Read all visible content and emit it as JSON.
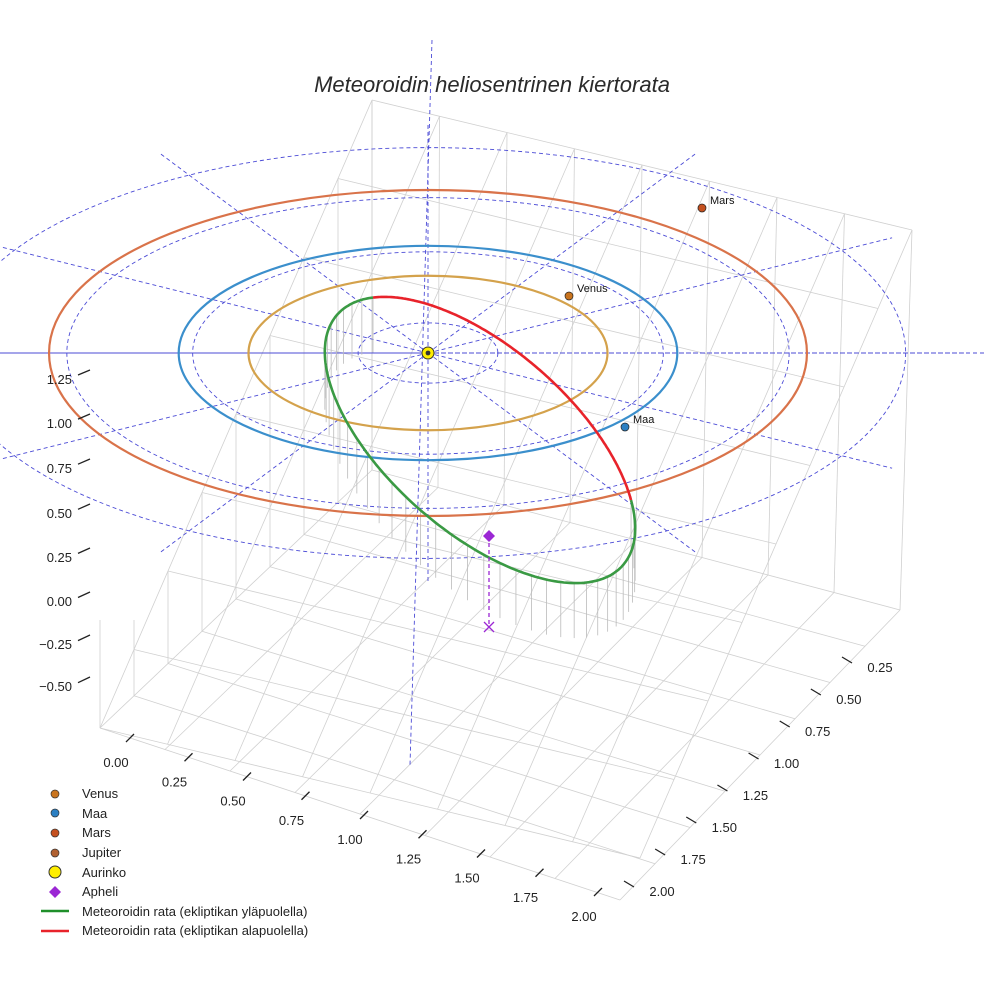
{
  "chart_data": {
    "type": "3d-line",
    "title": "Meteoroidin heliosentrinen kiertorata",
    "x_ticks": [
      "0.00",
      "0.25",
      "0.50",
      "0.75",
      "1.00",
      "1.25",
      "1.50",
      "1.75",
      "2.00"
    ],
    "y_ticks": [
      "0.25",
      "0.50",
      "0.75",
      "1.00",
      "1.25",
      "1.50",
      "1.75",
      "2.00"
    ],
    "z_ticks": [
      "1.25",
      "1.00",
      "0.75",
      "0.50",
      "0.25",
      "0.00",
      "−0.25",
      "−0.50"
    ],
    "planets": [
      {
        "name": "Venus",
        "orbit_radius_au": 0.72,
        "label": "Venus"
      },
      {
        "name": "Maa",
        "orbit_radius_au": 1.0,
        "label": "Maa"
      },
      {
        "name": "Mars",
        "orbit_radius_au": 1.52,
        "label": "Mars"
      }
    ],
    "sun": {
      "name": "Aurinko",
      "position": [
        0,
        0,
        0
      ]
    },
    "meteoroid_orbit": {
      "perihelion_au": 0.0,
      "aphelion_au": 1.3,
      "above_ecliptic_label": "Meteoroidin rata (ekliptikan yläpuolella)",
      "below_ecliptic_label": "Meteoroidin rata (ekliptikan alapuolella)"
    },
    "aphelion_point": {
      "name": "Apheli",
      "projection_z": -0.35
    },
    "legend": [
      {
        "label": "Venus",
        "symbol": "dot",
        "color": "#c9741e"
      },
      {
        "label": "Maa",
        "symbol": "dot",
        "color": "#2b7fc2"
      },
      {
        "label": "Mars",
        "symbol": "dot",
        "color": "#c4501f"
      },
      {
        "label": "Jupiter",
        "symbol": "dot",
        "color": "#b06030"
      },
      {
        "label": "Aurinko",
        "symbol": "sun",
        "color": "#ffee00"
      },
      {
        "label": "Apheli",
        "symbol": "diamond",
        "color": "#9b27d4"
      },
      {
        "label": "Meteoroidin rata (ekliptikan yläpuolella)",
        "symbol": "line",
        "color": "#1f8f2a"
      },
      {
        "label": "Meteoroidin rata (ekliptikan alapuolella)",
        "symbol": "line",
        "color": "#e8232b"
      }
    ],
    "colors": {
      "venus_orbit": "#d4a24c",
      "earth_orbit": "#3b8fcc",
      "mars_orbit": "#d9734a",
      "meteor_above": "#3a9a44",
      "meteor_below": "#e8232b",
      "grid": "#d0d0d0",
      "polar_grid": "#4b4bd6",
      "apheli": "#9b27d4"
    }
  }
}
